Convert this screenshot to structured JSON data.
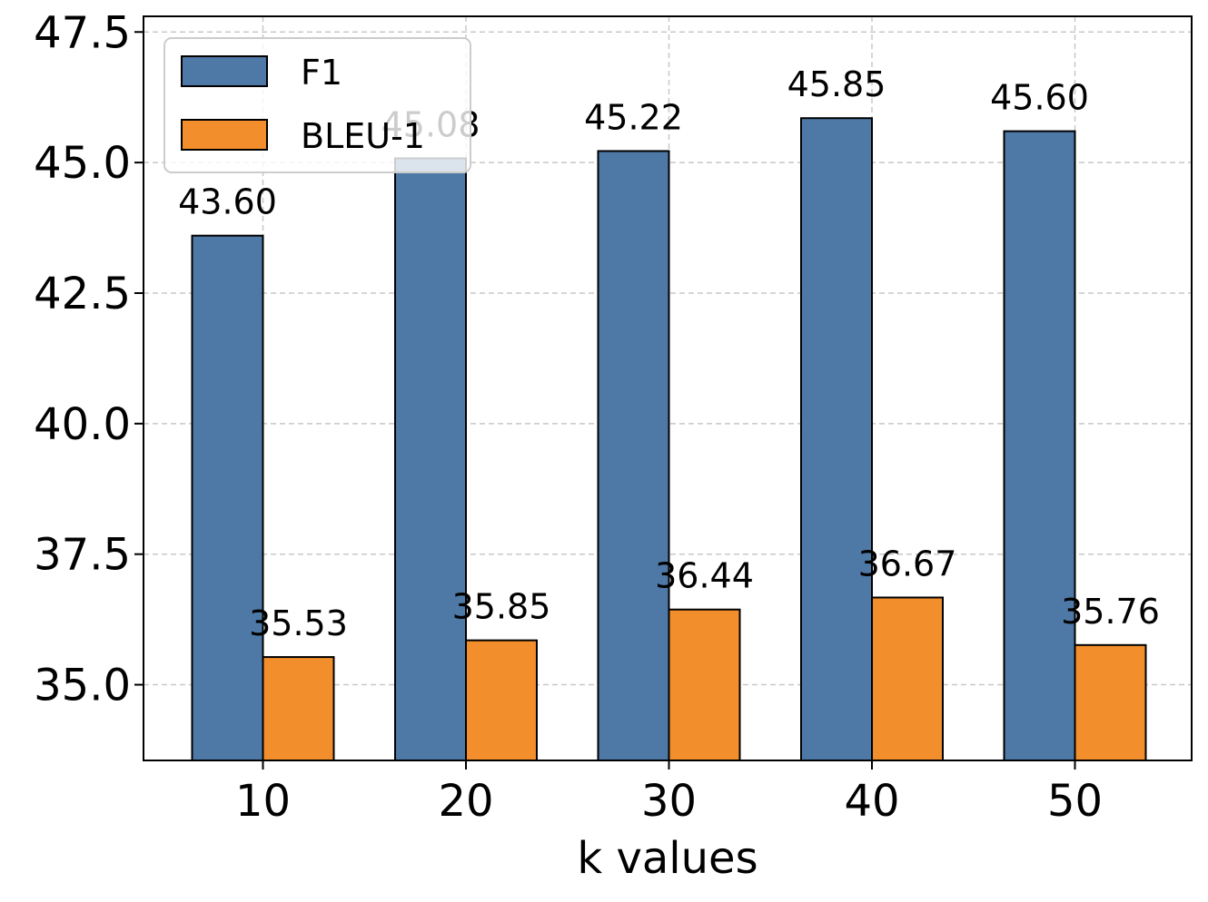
{
  "chart_data": {
    "type": "bar",
    "title": "",
    "xlabel": "k values",
    "ylabel": "",
    "categories": [
      "10",
      "20",
      "30",
      "40",
      "50"
    ],
    "series": [
      {
        "name": "F1",
        "color": "#4e79a7",
        "values": [
          43.6,
          45.08,
          45.22,
          45.85,
          45.6
        ],
        "labels": [
          "43.60",
          "45.08",
          "45.22",
          "45.85",
          "45.60"
        ]
      },
      {
        "name": "BLEU-1",
        "color": "#f28e2b",
        "values": [
          35.53,
          35.85,
          36.44,
          36.67,
          35.76
        ],
        "labels": [
          "35.53",
          "35.85",
          "36.44",
          "36.67",
          "35.76"
        ]
      }
    ],
    "ylim": [
      33.55,
      47.8
    ],
    "yticks": [
      35.0,
      37.5,
      40.0,
      42.5,
      45.0,
      47.5
    ],
    "ytick_labels": [
      "35.0",
      "37.5",
      "40.0",
      "42.5",
      "45.0",
      "47.5"
    ],
    "grid": true,
    "legend": "top-left"
  }
}
